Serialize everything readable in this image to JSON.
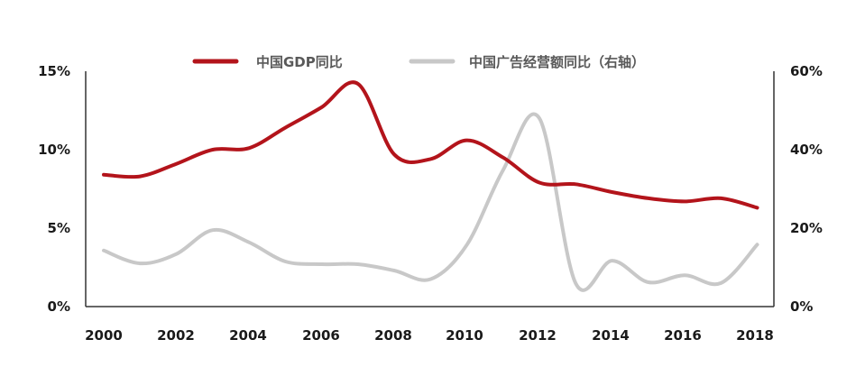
{
  "chart_data": {
    "type": "line",
    "title": "",
    "xlabel": "",
    "ylabel": "",
    "x_ticks": [
      "2000",
      "2002",
      "2004",
      "2006",
      "2008",
      "2010",
      "2012",
      "2014",
      "2016",
      "2018"
    ],
    "left_axis": {
      "range": [
        0,
        15
      ],
      "ticks": [
        0,
        5,
        10,
        15
      ],
      "tick_labels": [
        "0%",
        "5%",
        "10%",
        "15%"
      ]
    },
    "right_axis": {
      "range": [
        0,
        60
      ],
      "ticks": [
        0,
        20,
        40,
        60
      ],
      "tick_labels": [
        "0%",
        "20%",
        "40%",
        "60%"
      ]
    },
    "legend_position": "top-center",
    "grid": false,
    "series": [
      {
        "name": "中国GDP同比",
        "axis": "left",
        "color": "#b3141b",
        "x": [
          2000,
          2001,
          2002,
          2003,
          2004,
          2005,
          2006,
          2007,
          2008,
          2009,
          2010,
          2011,
          2012,
          2013,
          2014,
          2015,
          2016,
          2017,
          2018
        ],
        "values": [
          8.4,
          8.3,
          9.1,
          10.0,
          10.1,
          11.4,
          12.7,
          14.2,
          9.7,
          9.4,
          10.6,
          9.5,
          7.9,
          7.8,
          7.3,
          6.9,
          6.7,
          6.9,
          6.3
        ]
      },
      {
        "name": "中国广告经营额同比（右轴）",
        "axis": "right",
        "color": "#c8c8c8",
        "x": [
          2000,
          2001,
          2002,
          2003,
          2004,
          2005,
          2006,
          2007,
          2008,
          2009,
          2010,
          2011,
          2012,
          2013,
          2014,
          2015,
          2016,
          2017,
          2018
        ],
        "values": [
          14.3,
          11.0,
          13.4,
          19.5,
          16.4,
          11.5,
          10.8,
          10.8,
          9.2,
          7.0,
          15.7,
          34.8,
          48.0,
          5.9,
          11.7,
          6.2,
          8.0,
          6.0,
          15.8
        ]
      }
    ]
  }
}
